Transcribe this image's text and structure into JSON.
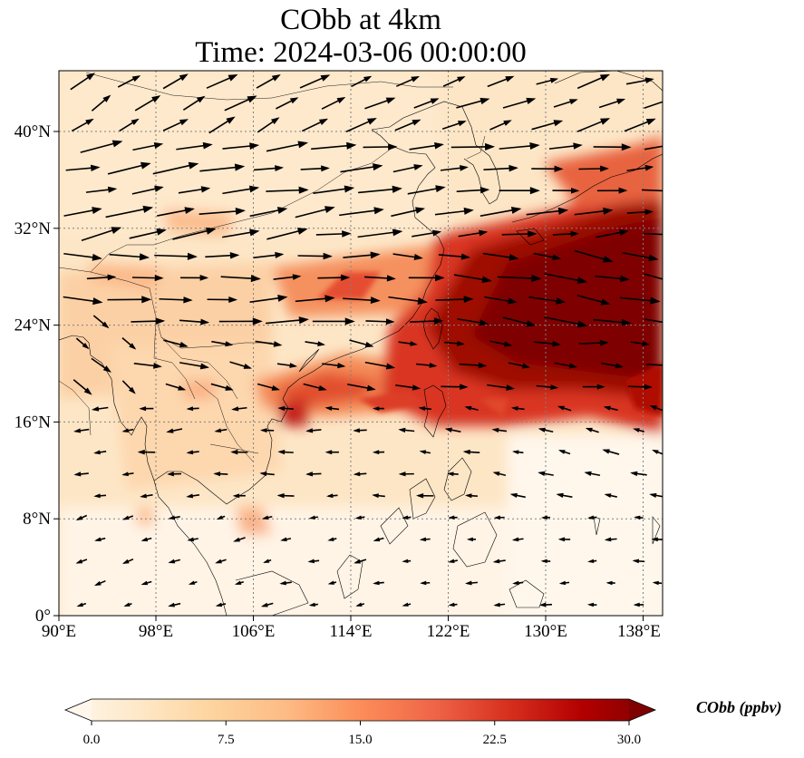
{
  "title_line1": "CObb at 4km",
  "title_line2": "Time: 2024-03-06 00:00:00",
  "map": {
    "extent": {
      "lon_min": 90,
      "lon_max": 139.5,
      "lat_min": 0,
      "lat_max": 45
    },
    "x_ticks": [
      "90°E",
      "98°E",
      "106°E",
      "114°E",
      "122°E",
      "130°E",
      "138°E"
    ],
    "x_tick_values": [
      90,
      98,
      106,
      114,
      122,
      130,
      138
    ],
    "y_ticks": [
      "0°",
      "8°N",
      "16°N",
      "24°N",
      "32°N",
      "40°N"
    ],
    "y_tick_values": [
      0,
      8,
      16,
      24,
      32,
      40
    ],
    "gridlines": "dotted",
    "field": "CObb",
    "plume": "high CObb (~30 ppbv) over East China Sea, Taiwan, Japan and the western Pacific; moderate values over Indochina and southern China"
  },
  "colorbar": {
    "min": 0.0,
    "max": 30.0,
    "tick_labels": [
      "0.0",
      "7.5",
      "15.0",
      "22.5",
      "30.0"
    ],
    "tick_values": [
      0,
      7.5,
      15,
      22.5,
      30
    ],
    "label": "CObb (ppbv)",
    "colormap": "OrRd",
    "colors": [
      "#fff7ec",
      "#fee8c8",
      "#fdd49e",
      "#fdbb84",
      "#fc8d59",
      "#ef6548",
      "#d7301f",
      "#b30000",
      "#7f0000"
    ],
    "extend": "both"
  }
}
